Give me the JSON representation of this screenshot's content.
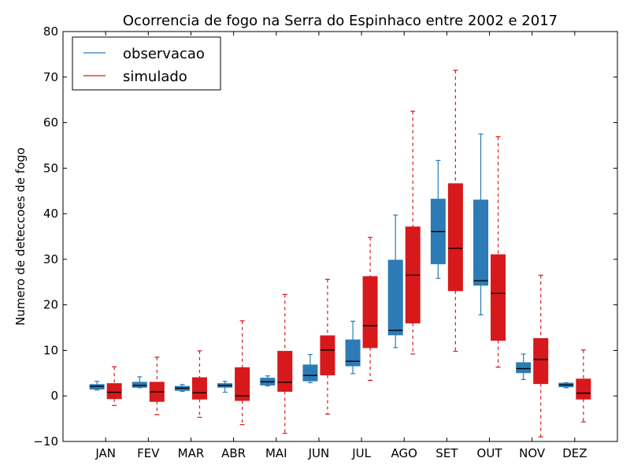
{
  "chart_data": {
    "type": "box",
    "title": "Ocorrencia de fogo na Serra do Espinhaco entre 2002 e 2017",
    "xlabel": "",
    "ylabel": "Numero de deteccoes de fogo",
    "ylim": [
      -10,
      80
    ],
    "yticks": [
      -10,
      0,
      10,
      20,
      30,
      40,
      50,
      60,
      70,
      80
    ],
    "grid": false,
    "legend_position": "top-left",
    "categories": [
      "JAN",
      "FEV",
      "MAR",
      "ABR",
      "MAI",
      "JUN",
      "JUL",
      "AGO",
      "SET",
      "OUT",
      "NOV",
      "DEZ"
    ],
    "series": [
      {
        "name": "observacao",
        "color": "#2c7bb6",
        "whisker_style": "solid",
        "boxes": [
          {
            "whislo": 1.3,
            "q1": 1.5,
            "med": 2.1,
            "q3": 2.5,
            "whishi": 3.2
          },
          {
            "whislo": 1.8,
            "q1": 1.9,
            "med": 2.3,
            "q3": 3.0,
            "whishi": 4.2
          },
          {
            "whislo": 1.0,
            "q1": 1.2,
            "med": 1.7,
            "q3": 2.1,
            "whishi": 2.5
          },
          {
            "whislo": 0.8,
            "q1": 1.9,
            "med": 2.3,
            "q3": 2.7,
            "whishi": 3.2
          },
          {
            "whislo": 2.2,
            "q1": 2.4,
            "med": 3.1,
            "q3": 3.9,
            "whishi": 4.4
          },
          {
            "whislo": 2.9,
            "q1": 3.3,
            "med": 4.5,
            "q3": 6.8,
            "whishi": 9.1
          },
          {
            "whislo": 4.9,
            "q1": 6.6,
            "med": 7.6,
            "q3": 12.3,
            "whishi": 16.4
          },
          {
            "whislo": 10.6,
            "q1": 13.4,
            "med": 14.4,
            "q3": 29.8,
            "whishi": 39.7
          },
          {
            "whislo": 25.8,
            "q1": 29.0,
            "med": 36.1,
            "q3": 43.2,
            "whishi": 51.7
          },
          {
            "whislo": 17.8,
            "q1": 24.3,
            "med": 25.3,
            "q3": 43.0,
            "whishi": 57.5
          },
          {
            "whislo": 3.6,
            "q1": 5.1,
            "med": 6.0,
            "q3": 7.3,
            "whishi": 9.2
          },
          {
            "whislo": 1.8,
            "q1": 2.0,
            "med": 2.4,
            "q3": 2.8,
            "whishi": 2.9
          }
        ]
      },
      {
        "name": "simulado",
        "color": "#d7191c",
        "whisker_style": "dashed",
        "boxes": [
          {
            "whislo": -2.1,
            "q1": -0.6,
            "med": 0.8,
            "q3": 2.7,
            "whishi": 6.4
          },
          {
            "whislo": -4.1,
            "q1": -1.2,
            "med": 0.9,
            "q3": 3.0,
            "whishi": 8.5
          },
          {
            "whislo": -4.7,
            "q1": -0.7,
            "med": 0.7,
            "q3": 4.0,
            "whishi": 9.9
          },
          {
            "whislo": -6.3,
            "q1": -1.0,
            "med": 0.0,
            "q3": 6.2,
            "whishi": 16.5
          },
          {
            "whislo": -8.2,
            "q1": 1.0,
            "med": 3.0,
            "q3": 9.8,
            "whishi": 22.3
          },
          {
            "whislo": -4.0,
            "q1": 4.6,
            "med": 10.1,
            "q3": 13.2,
            "whishi": 25.6
          },
          {
            "whislo": 3.4,
            "q1": 10.6,
            "med": 15.4,
            "q3": 26.2,
            "whishi": 34.8
          },
          {
            "whislo": 9.2,
            "q1": 16.0,
            "med": 26.5,
            "q3": 37.1,
            "whishi": 62.5
          },
          {
            "whislo": 9.8,
            "q1": 23.1,
            "med": 32.4,
            "q3": 46.6,
            "whishi": 71.5
          },
          {
            "whislo": 6.3,
            "q1": 12.2,
            "med": 22.5,
            "q3": 31.0,
            "whishi": 56.9
          },
          {
            "whislo": -9.0,
            "q1": 2.7,
            "med": 8.0,
            "q3": 12.6,
            "whishi": 26.5
          },
          {
            "whislo": -5.7,
            "q1": -0.7,
            "med": 0.6,
            "q3": 3.7,
            "whishi": 10.1
          }
        ]
      }
    ]
  }
}
